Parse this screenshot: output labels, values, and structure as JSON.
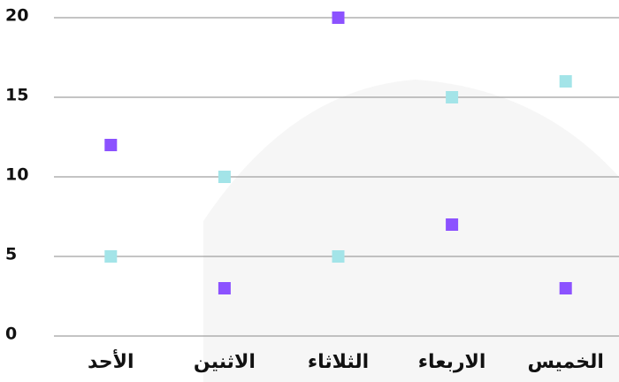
{
  "chart_data": {
    "type": "scatter",
    "categories": [
      "الأحد",
      "الاثنين",
      "الثلاثاء",
      "الاربعاء",
      "الخميس"
    ],
    "series": [
      {
        "color": "#8c52ff",
        "values": [
          12,
          3,
          20,
          7,
          3
        ]
      },
      {
        "color": "#a3e4e8",
        "values": [
          5,
          10,
          5,
          15,
          16
        ]
      }
    ],
    "ylim": [
      0,
      20
    ],
    "yticks": [
      0,
      5,
      10,
      15,
      20
    ],
    "grid": true
  }
}
